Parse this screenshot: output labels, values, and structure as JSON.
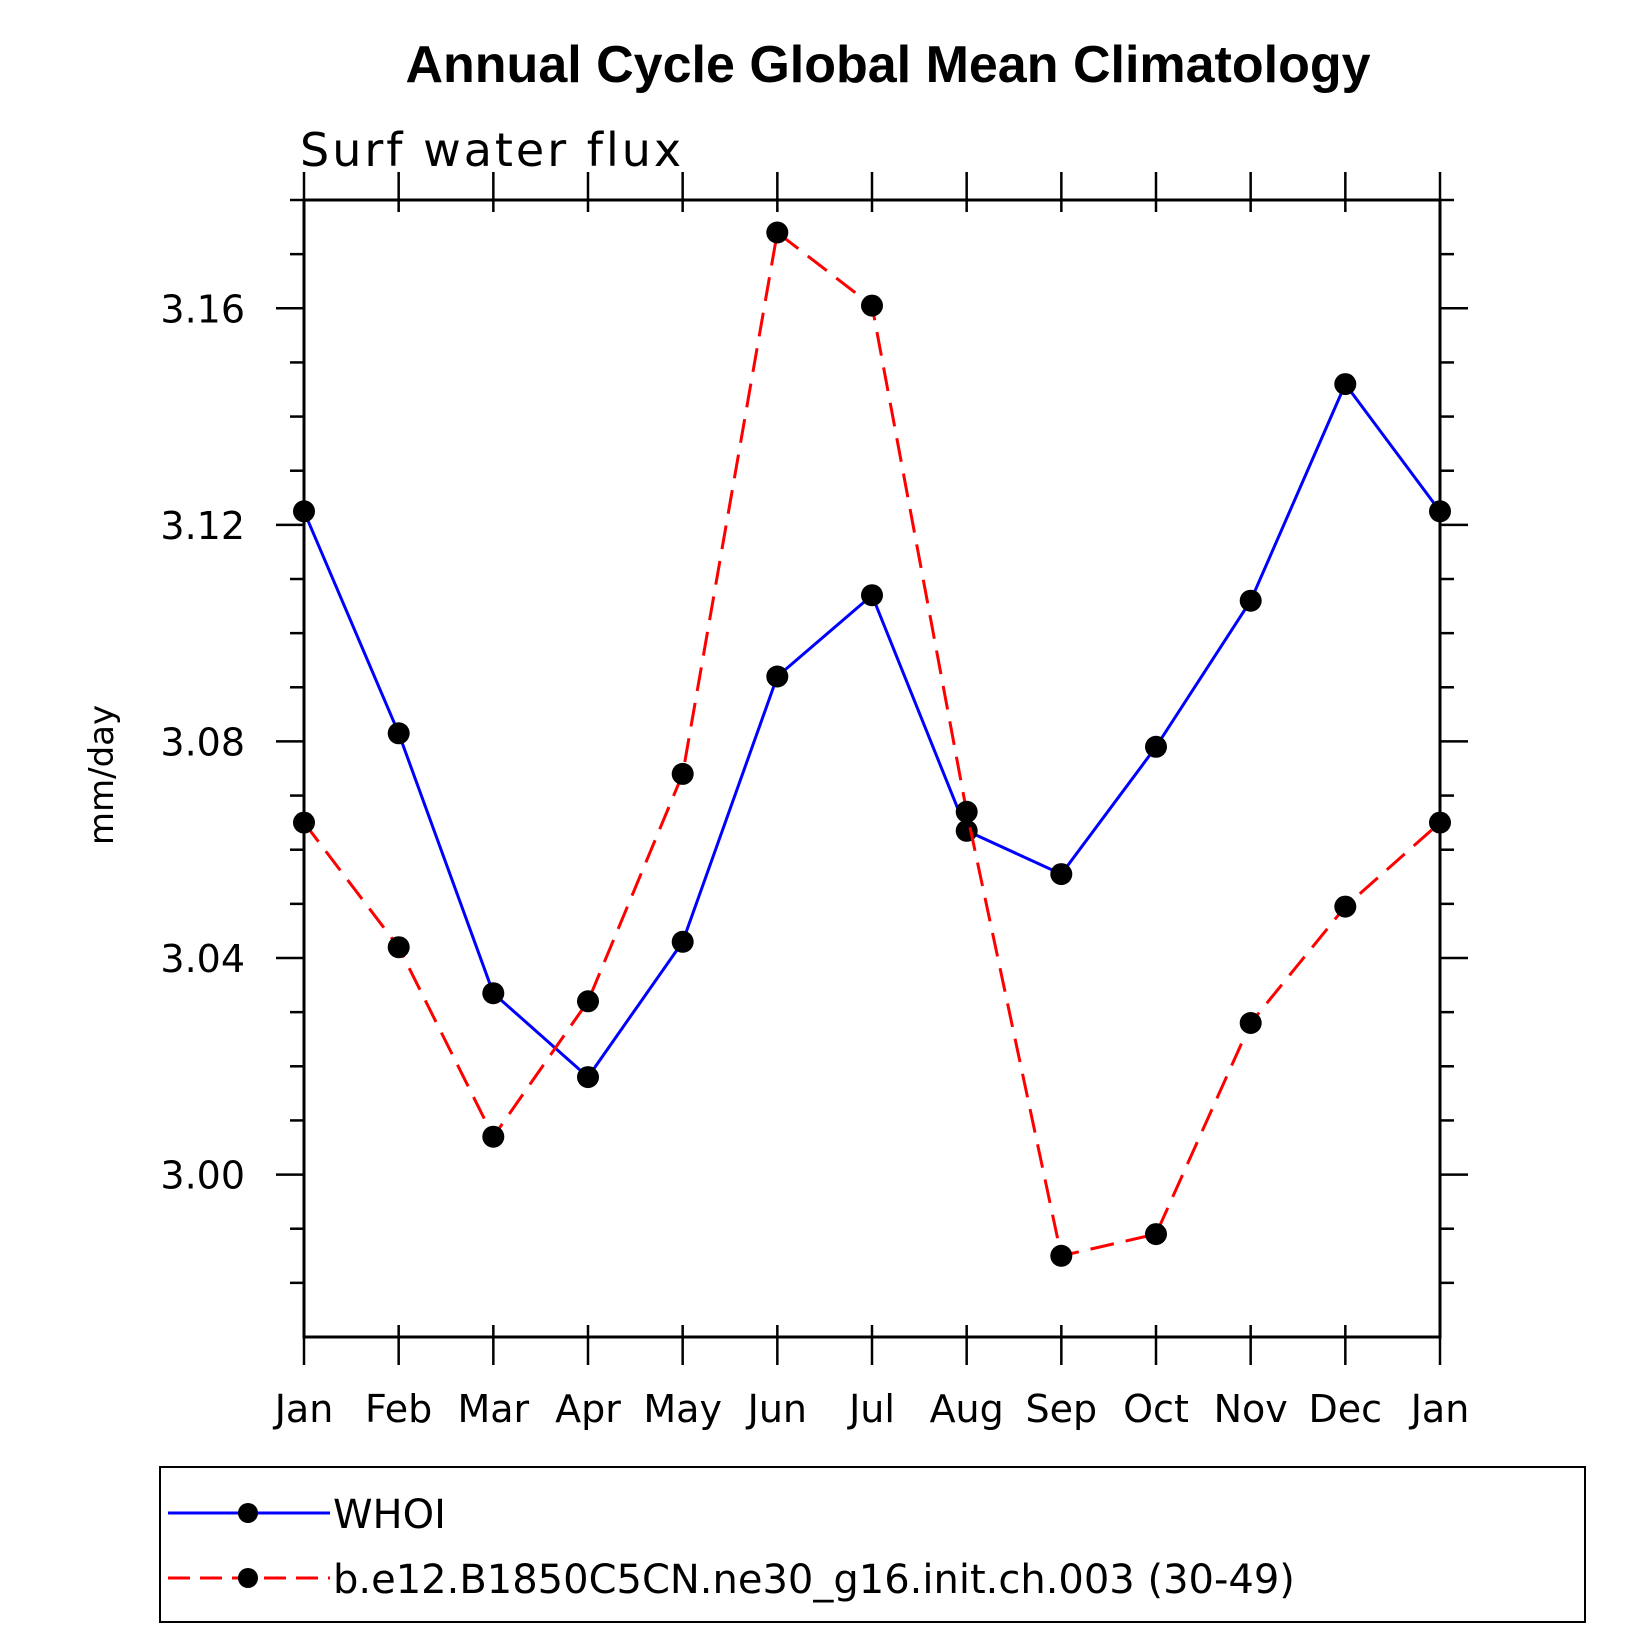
{
  "chart_data": {
    "type": "line",
    "title": "Annual Cycle Global Mean Climatology",
    "subtitle": "Surf  water  flux",
    "ylabel": "mm/day",
    "xlabel": "",
    "categories": [
      "Jan",
      "Feb",
      "Mar",
      "Apr",
      "May",
      "Jun",
      "Jul",
      "Aug",
      "Sep",
      "Oct",
      "Nov",
      "Dec",
      "Jan"
    ],
    "ylim": [
      2.97,
      3.18
    ],
    "yticks": [
      3.0,
      3.04,
      3.08,
      3.12,
      3.16
    ],
    "ytick_labels": [
      "3.00",
      "3.04",
      "3.08",
      "3.12",
      "3.16"
    ],
    "grid": false,
    "legend_position": "bottom",
    "series": [
      {
        "name": "WHOI",
        "color": "#0000ff",
        "dash": "solid",
        "marker": "filled-circle",
        "values": [
          3.1225,
          3.0815,
          3.0335,
          3.018,
          3.043,
          3.092,
          3.107,
          3.0635,
          3.0555,
          3.079,
          3.106,
          3.146,
          3.1225
        ]
      },
      {
        "name": "b.e12.B1850C5CN.ne30_g16.init.ch.003 (30-49)",
        "color": "#ff0000",
        "dash": "dashed",
        "marker": "filled-circle",
        "values": [
          3.065,
          3.042,
          3.007,
          3.032,
          3.074,
          3.174,
          3.1605,
          3.067,
          2.985,
          2.989,
          3.028,
          3.0495,
          3.065
        ]
      }
    ]
  }
}
